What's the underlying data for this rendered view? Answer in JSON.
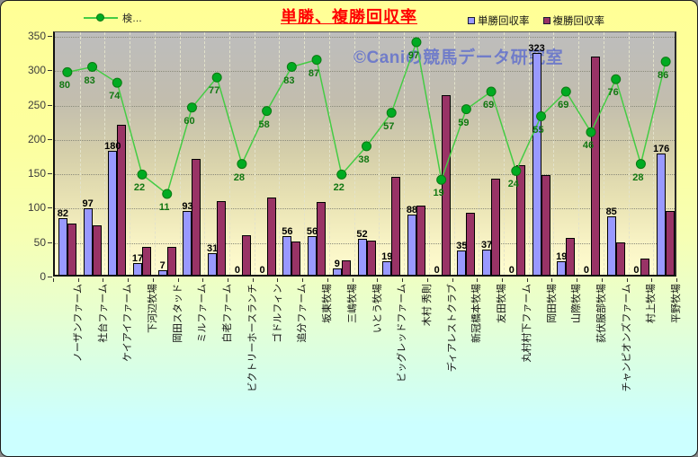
{
  "title": "単勝、複勝回収率",
  "watermark": "©Caniの競馬データ研究室",
  "legend": {
    "line": "検…",
    "bar1": "単勝回収率",
    "bar2": "複勝回収率"
  },
  "colors": {
    "bar1": "#9999FF",
    "bar2": "#993366",
    "line": "#44CC44",
    "marker": "#00AB22",
    "title": "#FF0000",
    "watermark": "#3D52D5",
    "value_label": "#000000",
    "line_label": "#117711"
  },
  "chart_data": {
    "type": "bar",
    "subtype": "grouped-bars-with-line-overlay",
    "title": "単勝、複勝回収率",
    "xlabel": "",
    "ylabel": "",
    "ylim": [
      0,
      350
    ],
    "ystep": 50,
    "grid": true,
    "legend_position": "top",
    "categories": [
      "ノーザンファーム",
      "社台ファーム",
      "ケイアイファーム",
      "下河辺牧場",
      "岡田スタッド",
      "ミルファーム",
      "白老ファーム",
      "ビクトリーホースランチ",
      "ゴドルフィン",
      "追分ファーム",
      "坂東牧場",
      "三嶋牧場",
      "いとう牧場",
      "ビッグレッドファーム",
      "木村 秀則",
      "ディアレストクラブ",
      "新冠橋本牧場",
      "友田牧場",
      "丸村村下ファーム",
      "岡田牧場",
      "山際牧場",
      "荻伏服部牧場",
      "チャンピオンズファーム",
      "村上牧場",
      "平野牧場"
    ],
    "series": [
      {
        "name": "単勝回収率",
        "type": "bar",
        "color": "#9999FF",
        "labels_visible": true,
        "values": [
          82,
          97,
          180,
          17,
          7,
          93,
          31,
          0,
          0,
          56,
          56,
          9,
          52,
          19,
          88,
          0,
          35,
          37,
          0,
          323,
          19,
          0,
          85,
          0,
          176
        ]
      },
      {
        "name": "複勝回収率",
        "type": "bar",
        "color": "#993366",
        "labels_visible": false,
        "values": [
          75,
          72,
          218,
          41,
          40,
          168,
          107,
          58,
          113,
          48,
          106,
          21,
          50,
          142,
          100,
          261,
          90,
          140,
          159,
          145,
          53,
          318,
          47,
          24,
          93
        ]
      },
      {
        "name": "検…",
        "type": "line",
        "color": "#44CC44",
        "labels_visible": true,
        "secondary_axis_range": [
          -36.3,
          100
        ],
        "values": [
          80,
          83,
          74,
          22,
          11,
          60,
          77,
          28,
          58,
          83,
          87,
          22,
          38,
          57,
          97,
          19,
          59,
          69,
          24,
          55,
          69,
          46,
          76,
          28,
          86
        ]
      }
    ]
  }
}
